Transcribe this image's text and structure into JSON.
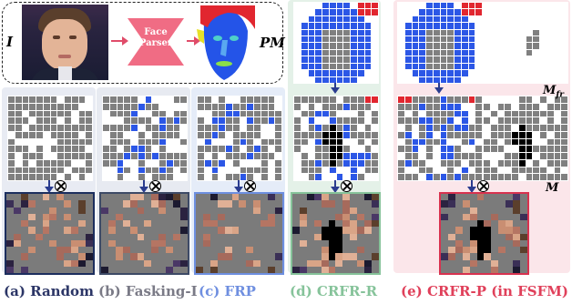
{
  "top": {
    "input_label": "I",
    "parser_label_line1": "Face",
    "parser_label_line2": "Parser",
    "parsing_map_label": "PM"
  },
  "labels": {
    "mask_fr": "M",
    "mask_fr_sub": "fr",
    "mask": "M"
  },
  "captions": {
    "a": "(a) Random",
    "b": "(b) Fasking-I",
    "c": "(c) FRP",
    "d": "(d) CRFR-R",
    "e": "(e) CRFR-P (in FSFM)"
  },
  "colors": {
    "panel_a": "#e8ebf3",
    "panel_b": "#e7eaf1",
    "panel_c": "#e5ecf8",
    "panel_d": "#e4f1e8",
    "panel_e": "#fbe6ea",
    "caption_a": "#2b3566",
    "caption_b": "#7a7a86",
    "caption_c": "#6f8fe0",
    "caption_d": "#86c39a",
    "caption_e": "#e0405a",
    "face_parser": "#f06c84",
    "border_a": "#1c2e5e",
    "border_b": "#3d4a66",
    "border_c": "#6d8fe0",
    "border_d": "#86c39a",
    "border_e": "#d8324f"
  },
  "icons": [
    "otimes-icon",
    "arrow-right-icon",
    "arrow-down-icon"
  ]
}
